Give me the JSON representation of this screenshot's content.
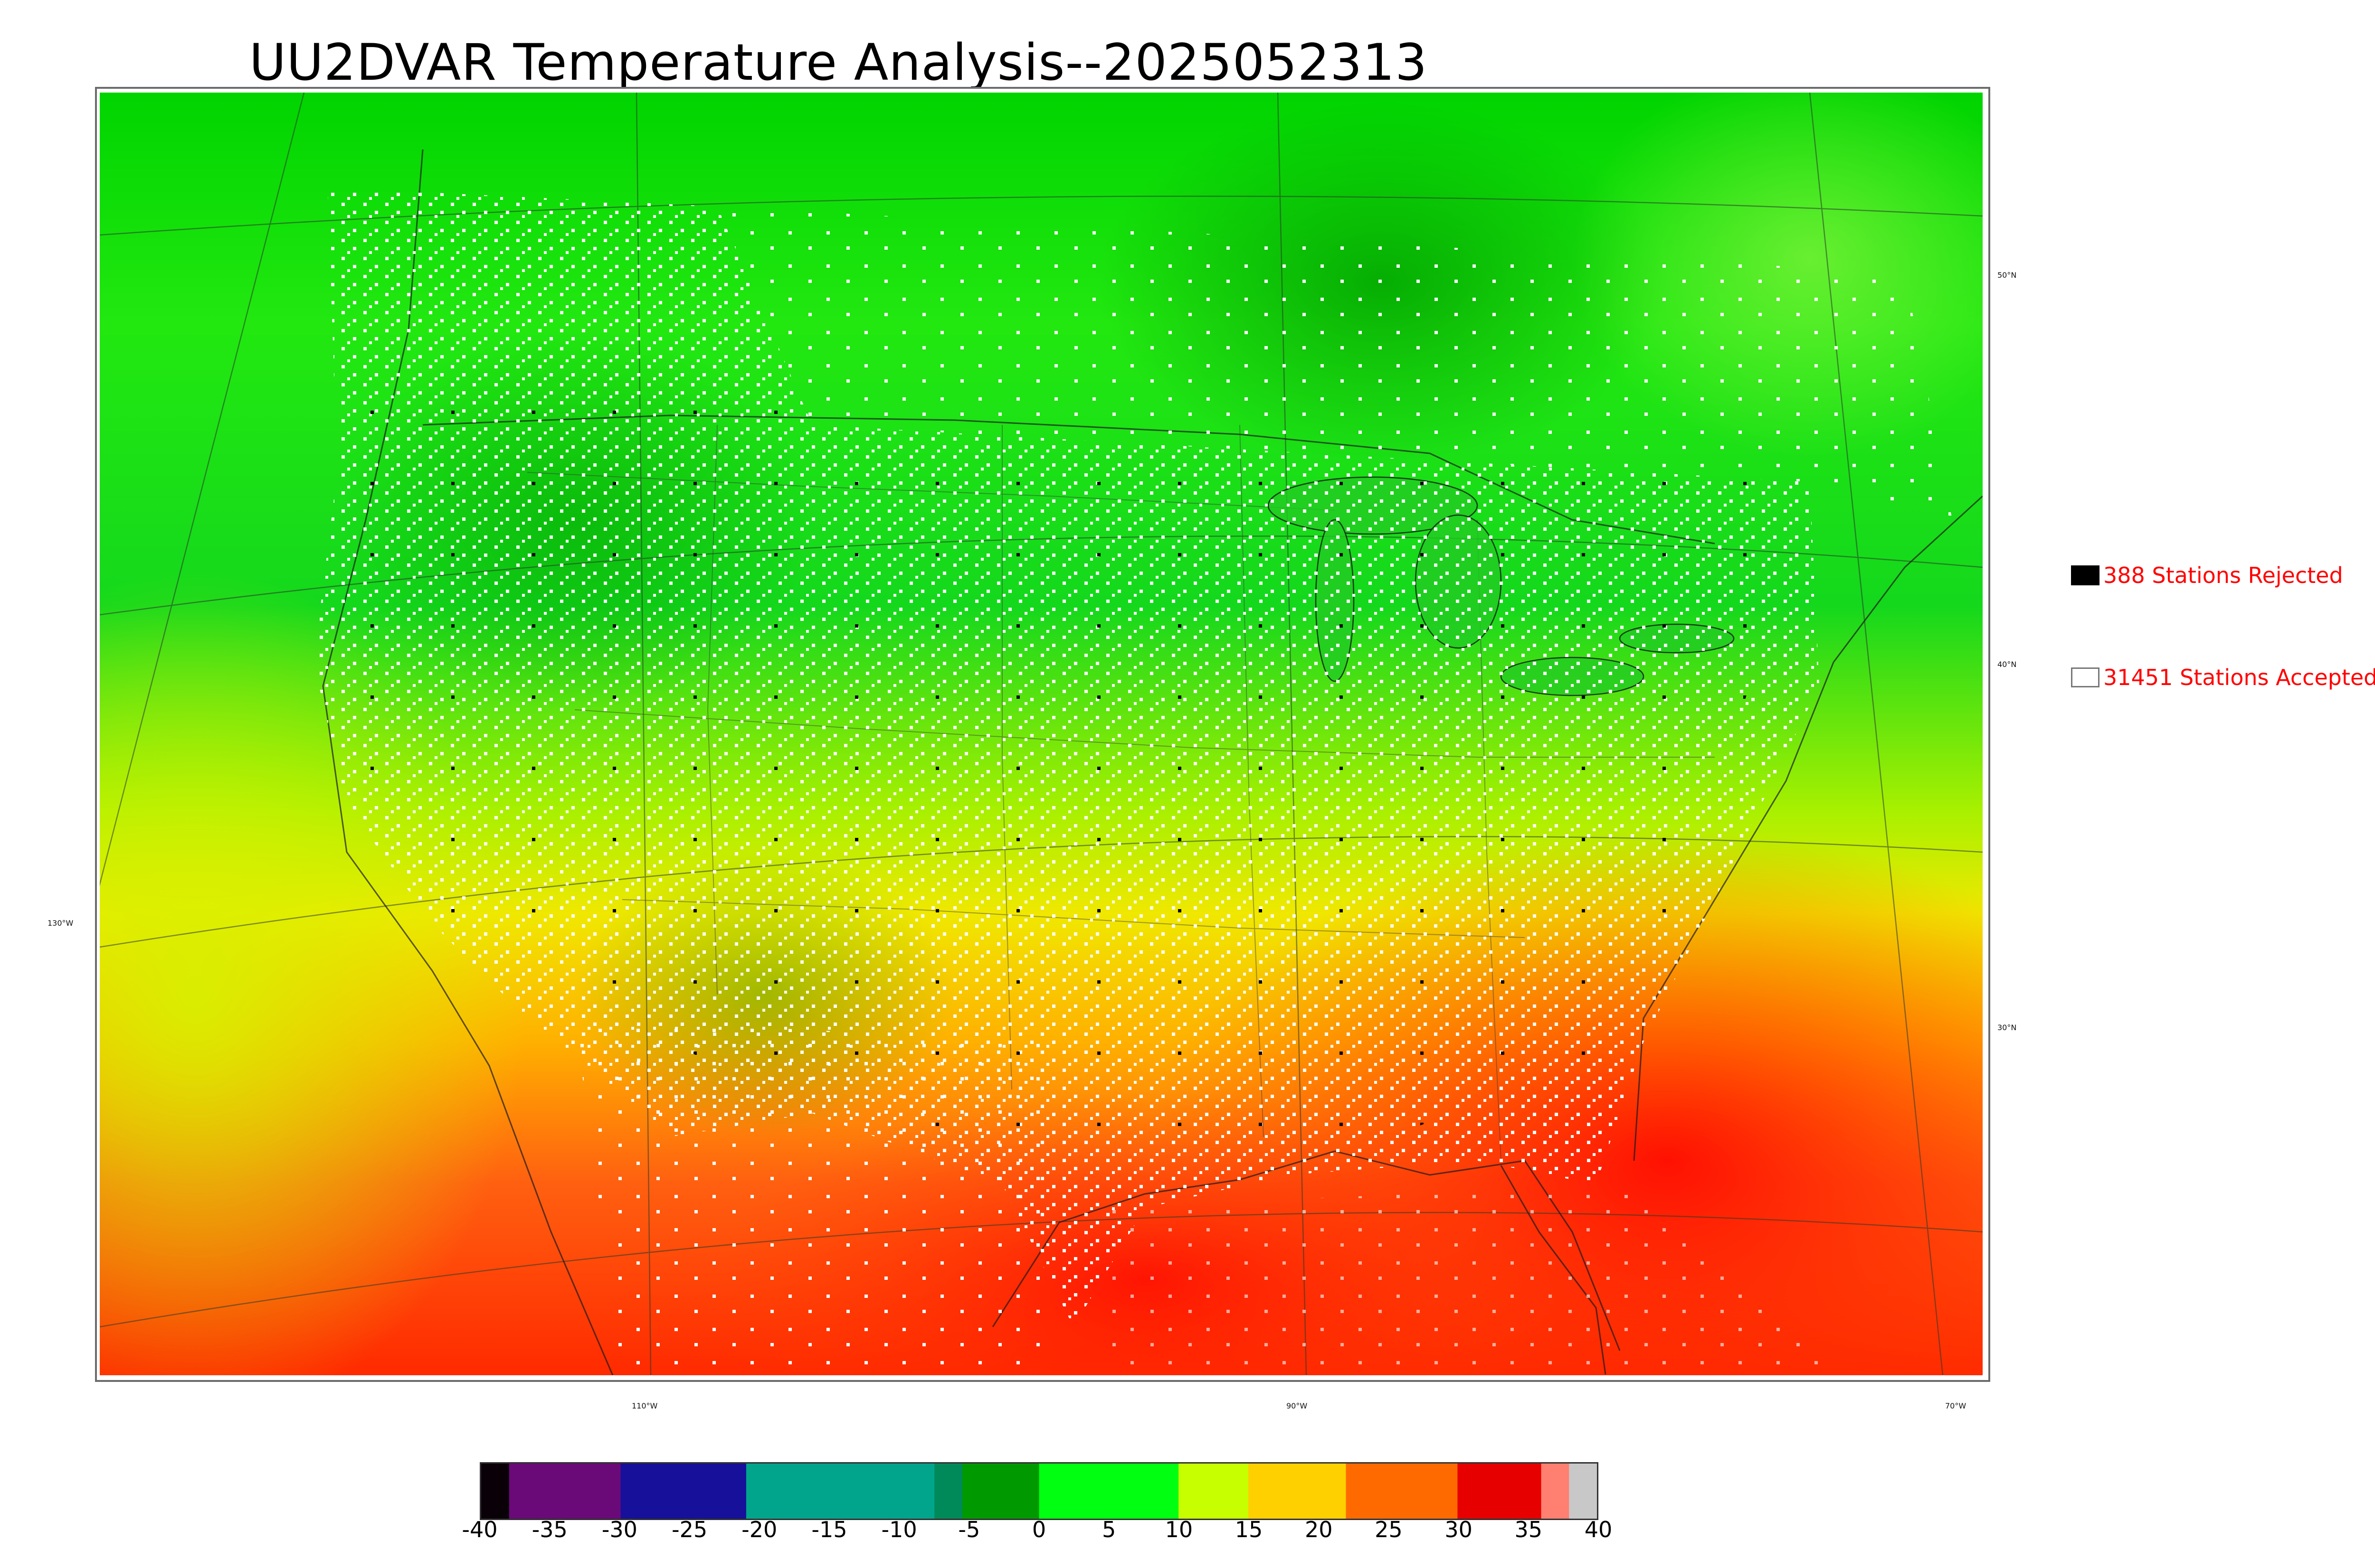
{
  "title": "UU2DVAR Temperature Analysis--2025052313",
  "legend": {
    "rejected": {
      "label": "388 Stations Rejected",
      "color": "#000000"
    },
    "accepted": {
      "label": "31451 Stations Accepted",
      "color": "#ffffff"
    },
    "text_color": "#ff0000"
  },
  "lat_labels": [
    "50°N",
    "40°N",
    "30°N"
  ],
  "lon_labels": [
    "130°W",
    "110°W",
    "90°W",
    "70°W"
  ],
  "colorbar": {
    "ticks": [
      "-40",
      "-35",
      "-30",
      "-25",
      "-20",
      "-15",
      "-10",
      "-5",
      "0",
      "5",
      "10",
      "15",
      "20",
      "25",
      "30",
      "35",
      "40"
    ],
    "range": [
      -40,
      40
    ],
    "bands": [
      {
        "from": -40,
        "to": -38,
        "color": "#0a0008"
      },
      {
        "from": -38,
        "to": -30,
        "color": "#6a0a78"
      },
      {
        "from": -30,
        "to": -21,
        "color": "#16109a"
      },
      {
        "from": -21,
        "to": -7.5,
        "color": "#00a58c"
      },
      {
        "from": -7.5,
        "to": -5.5,
        "color": "#008a5a"
      },
      {
        "from": -5.5,
        "to": 0,
        "color": "#009a00"
      },
      {
        "from": 0,
        "to": 10,
        "color": "#00ff10"
      },
      {
        "from": 10,
        "to": 15,
        "color": "#c8ff00"
      },
      {
        "from": 15,
        "to": 22,
        "color": "#ffd000"
      },
      {
        "from": 22,
        "to": 30,
        "color": "#ff6a00"
      },
      {
        "from": 30,
        "to": 36,
        "color": "#e60000"
      },
      {
        "from": 36,
        "to": 38,
        "color": "#ff8070"
      },
      {
        "from": 38,
        "to": 40,
        "color": "#c8c8c8"
      }
    ]
  }
}
